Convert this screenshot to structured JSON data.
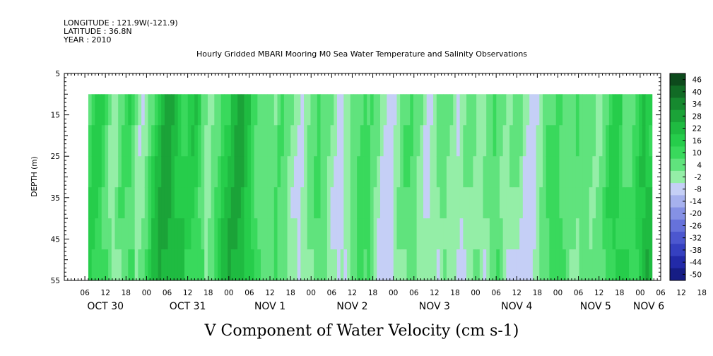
{
  "header": {
    "longitude": "LONGITUDE : 121.9W(-121.9)",
    "latitude": "LATITUDE : 36.8N",
    "year": "YEAR : 2010",
    "title": "Hourly Gridded MBARI Mooring M0 Sea Water Temperature and Salinity Observations"
  },
  "chart_data": {
    "type": "heatmap",
    "title": "Hourly Gridded MBARI Mooring M0 Sea Water Temperature and Salinity Observations",
    "xlabel": "V Component of Water Velocity (cm s-1)",
    "ylabel": "DEPTH (m)",
    "x_range_hours": [
      0,
      174
    ],
    "x_hour_ticks": [
      "06",
      "12",
      "18",
      "00",
      "06",
      "12",
      "18",
      "00",
      "06",
      "12",
      "18",
      "00",
      "06",
      "12",
      "18",
      "00",
      "06",
      "12",
      "18",
      "00",
      "06",
      "12",
      "18",
      "00",
      "06",
      "12",
      "18",
      "00",
      "06",
      "12",
      "18",
      "00"
    ],
    "date_labels": [
      "OCT 30",
      "OCT 31",
      "NOV  1",
      "NOV  2",
      "NOV  3",
      "NOV  4",
      "NOV  5",
      "NOV  6"
    ],
    "y_range_m": [
      5,
      55
    ],
    "y_ticks": [
      "5",
      "15",
      "25",
      "35",
      "45",
      "55"
    ],
    "data_depth_range_m": [
      10,
      55
    ],
    "data_time_range_hours": [
      7,
      171.5
    ],
    "colorbar": {
      "labels": [
        "46",
        "40",
        "34",
        "28",
        "22",
        "16",
        "10",
        "4",
        "-2",
        "-8",
        "-14",
        "-20",
        "-26",
        "-32",
        "-38",
        "-44",
        "-50"
      ],
      "colors": [
        "#0d4a1c",
        "#116b25",
        "#16892f",
        "#1ba338",
        "#1fbb41",
        "#26cd4b",
        "#39d95c",
        "#60e37d",
        "#94eea7",
        "#c5cff6",
        "#a6b1ee",
        "#8591e5",
        "#6672db",
        "#4c57cf",
        "#3540c0",
        "#222aa8",
        "#161d85"
      ]
    },
    "columns_v": [
      4,
      10,
      14,
      16,
      12,
      6,
      -2,
      -8,
      -10,
      -4,
      2,
      8,
      12,
      6,
      -4,
      -10,
      -12,
      -8,
      -2,
      4,
      10,
      16,
      22,
      26,
      28,
      24,
      20,
      14,
      10,
      8,
      12,
      16,
      18,
      12,
      4,
      -4,
      -8,
      -6,
      -2,
      2,
      6,
      10,
      14,
      18,
      22,
      24,
      26,
      22,
      18,
      12,
      6,
      2,
      -2,
      -4,
      -2,
      0,
      2,
      4,
      6,
      4,
      0,
      -4,
      -8,
      -12,
      -14,
      -10,
      -6,
      -2,
      2,
      6,
      8,
      4,
      0,
      -4,
      -8,
      -12,
      -14,
      -12,
      -8,
      -4,
      -2,
      2,
      4,
      6,
      8,
      6,
      2,
      -2,
      -6,
      -10,
      -14,
      -16,
      -12,
      -8,
      -4,
      0,
      4,
      6,
      4,
      0,
      -4,
      -10,
      -14,
      -12,
      -8,
      -4,
      0,
      2,
      0,
      -4,
      -8,
      -12,
      -10,
      -6,
      -2,
      0,
      -2,
      -6,
      -10,
      -8,
      -4,
      2,
      6,
      4,
      0,
      -4,
      -8,
      -6,
      -2,
      0,
      -2,
      -6,
      -10,
      -14,
      -16,
      -12,
      -8,
      -4,
      0,
      4,
      8,
      10,
      6,
      2,
      -2,
      -4,
      -2,
      0,
      2,
      4,
      2,
      0,
      -2,
      -6,
      -8,
      -4,
      2,
      8,
      14,
      16,
      12,
      6,
      2,
      -2,
      0,
      6,
      12,
      18,
      20,
      16
    ]
  }
}
